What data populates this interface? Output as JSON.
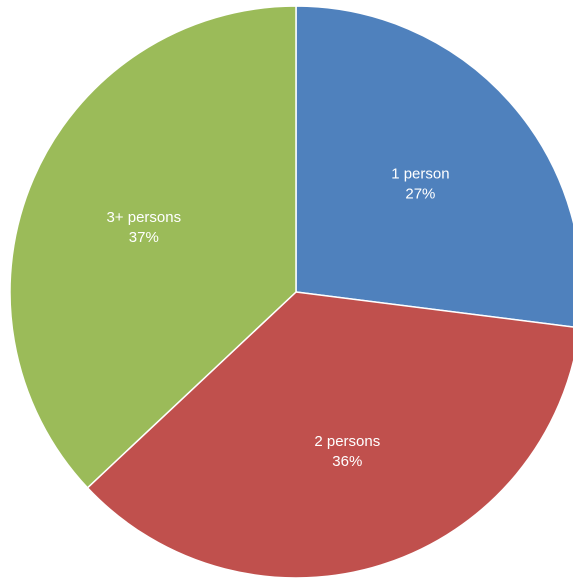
{
  "chart_data": {
    "type": "pie",
    "title": "",
    "start_angle_deg": 0,
    "direction": "clockwise",
    "slices": [
      {
        "label": "1 person",
        "value_label": "27%",
        "value": 27,
        "color": "#4f81bd"
      },
      {
        "label": "2 persons",
        "value_label": "36%",
        "value": 36,
        "color": "#c0504d"
      },
      {
        "label": "3+ persons",
        "value_label": "37%",
        "value": 37,
        "color": "#9bbb59"
      }
    ],
    "legend": "none"
  }
}
